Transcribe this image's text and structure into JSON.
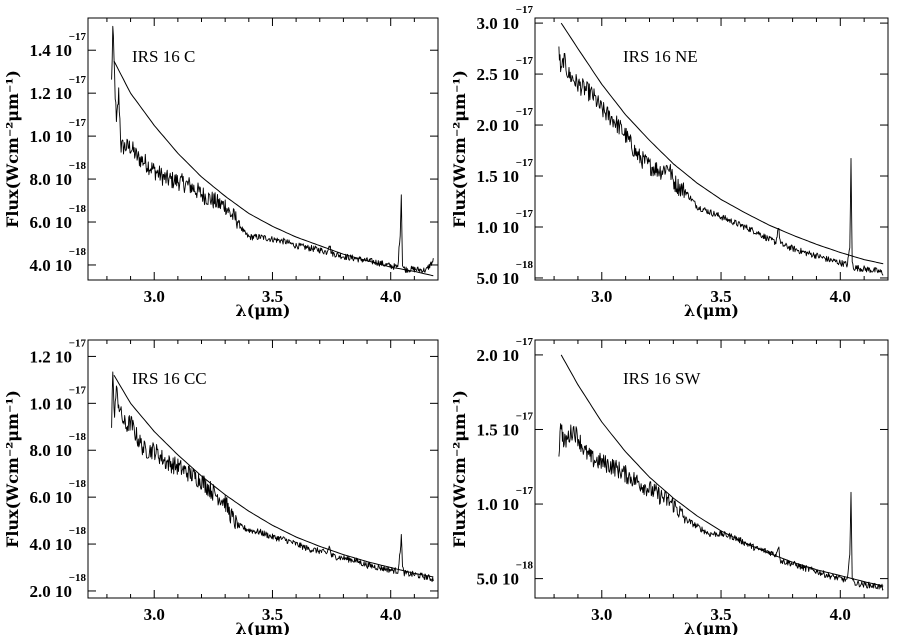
{
  "chart_data": [
    {
      "type": "line",
      "title": "IRS 16 C",
      "xlabel": "λ(μm)",
      "ylabel": "Flux(Wcm⁻²μm⁻¹)",
      "xlim": [
        2.72,
        4.2
      ],
      "ylim": [
        3.3e-18,
        1.55e-17
      ],
      "xticks": [
        {
          "v": 3.0,
          "label": "3.0"
        },
        {
          "v": 3.5,
          "label": "3.5"
        },
        {
          "v": 4.0,
          "label": "4.0"
        }
      ],
      "yticks": [
        {
          "v": 1.4e-17,
          "mant": "1.4 10",
          "exp": "−17"
        },
        {
          "v": 1.2e-17,
          "mant": "1.2 10",
          "exp": "−17"
        },
        {
          "v": 1e-17,
          "mant": "1.0 10",
          "exp": "−17"
        },
        {
          "v": 8e-18,
          "mant": "8.0 10",
          "exp": "−18"
        },
        {
          "v": 6e-18,
          "mant": "6.0 10",
          "exp": "−18"
        },
        {
          "v": 4e-18,
          "mant": "4.0 10",
          "exp": "−18"
        }
      ],
      "series": [
        {
          "kind": "spectrum",
          "x": [
            2.82,
            2.825,
            2.83,
            2.835,
            2.84,
            2.85,
            2.86,
            2.88,
            2.9,
            2.93,
            2.96,
            3.0,
            3.05,
            3.1,
            3.15,
            3.2,
            3.25,
            3.28,
            3.3,
            3.32,
            3.35,
            3.38,
            3.4,
            3.45,
            3.5,
            3.55,
            3.6,
            3.65,
            3.7,
            3.73,
            3.74,
            3.75,
            3.8,
            3.85,
            3.9,
            3.95,
            4.0,
            4.03,
            4.04,
            4.045,
            4.05,
            4.055,
            4.06,
            4.1,
            4.15,
            4.18
          ],
          "y": [
            1.25e-17,
            1.5e-17,
            1.35e-17,
            1.2e-17,
            1.05e-17,
            1.2e-17,
            9.5e-18,
            9.5e-18,
            9.5e-18,
            9e-18,
            8.8e-18,
            8.4e-18,
            8e-18,
            7.9e-18,
            7.7e-18,
            7.3e-18,
            7e-18,
            6.8e-18,
            6.8e-18,
            6.4e-18,
            6.1e-18,
            5.5e-18,
            5.3e-18,
            5.3e-18,
            5.2e-18,
            5.1e-18,
            4.9e-18,
            4.8e-18,
            4.7e-18,
            4.6e-18,
            5e-18,
            4.55e-18,
            4.4e-18,
            4.3e-18,
            4.2e-18,
            4.1e-18,
            3.95e-18,
            3.9e-18,
            5.5e-18,
            7.3e-18,
            4e-18,
            3.85e-18,
            3.8e-18,
            3.8e-18,
            3.75e-18,
            4.2e-18
          ]
        },
        {
          "kind": "model",
          "x": [
            2.83,
            2.9,
            3.0,
            3.1,
            3.2,
            3.3,
            3.4,
            3.5,
            3.6,
            3.7,
            3.8,
            3.9,
            4.0,
            4.1,
            4.18
          ],
          "y": [
            1.35e-17,
            1.2e-17,
            1.05e-17,
            9.2e-18,
            8.1e-18,
            7.2e-18,
            6.4e-18,
            5.8e-18,
            5.3e-18,
            4.9e-18,
            4.5e-18,
            4.2e-18,
            3.9e-18,
            3.7e-18,
            3.5e-18
          ]
        }
      ]
    },
    {
      "type": "line",
      "title": "IRS 16 NE",
      "xlabel": "λ(μm)",
      "ylabel": "Flux(Wcm⁻²μm⁻¹)",
      "xlim": [
        2.72,
        4.2
      ],
      "ylim": [
        4.8e-18,
        3.05e-17
      ],
      "xticks": [
        {
          "v": 3.0,
          "label": "3.0"
        },
        {
          "v": 3.5,
          "label": "3.5"
        },
        {
          "v": 4.0,
          "label": "4.0"
        }
      ],
      "yticks": [
        {
          "v": 3e-17,
          "mant": "3.0 10",
          "exp": "−17"
        },
        {
          "v": 2.5e-17,
          "mant": "2.5 10",
          "exp": "−17"
        },
        {
          "v": 2e-17,
          "mant": "2.0 10",
          "exp": "−17"
        },
        {
          "v": 1.5e-17,
          "mant": "1.5 10",
          "exp": "−17"
        },
        {
          "v": 1e-17,
          "mant": "1.0 10",
          "exp": "−17"
        },
        {
          "v": 5e-18,
          "mant": "5.0 10",
          "exp": "−18"
        }
      ],
      "series": [
        {
          "kind": "spectrum",
          "x": [
            2.82,
            2.83,
            2.84,
            2.86,
            2.88,
            2.9,
            2.93,
            2.96,
            3.0,
            3.05,
            3.1,
            3.15,
            3.2,
            3.25,
            3.28,
            3.3,
            3.32,
            3.35,
            3.4,
            3.45,
            3.5,
            3.55,
            3.6,
            3.65,
            3.7,
            3.73,
            3.74,
            3.75,
            3.8,
            3.85,
            3.9,
            3.95,
            4.0,
            4.03,
            4.04,
            4.045,
            4.05,
            4.055,
            4.06,
            4.1,
            4.15,
            4.18
          ],
          "y": [
            2.75e-17,
            2.5e-17,
            2.65e-17,
            2.5e-17,
            2.45e-17,
            2.4e-17,
            2.35e-17,
            2.3e-17,
            2.15e-17,
            2.05e-17,
            1.9e-17,
            1.7e-17,
            1.6e-17,
            1.55e-17,
            1.6e-17,
            1.45e-17,
            1.4e-17,
            1.35e-17,
            1.2e-17,
            1.15e-17,
            1.1e-17,
            1.05e-17,
            1e-17,
            9.5e-18,
            8.8e-18,
            8.5e-18,
            1e-17,
            8.3e-18,
            7.9e-18,
            7.5e-18,
            7.2e-18,
            6.8e-18,
            6.5e-18,
            6.3e-18,
            8e-18,
            1.65e-17,
            6.5e-18,
            6.1e-18,
            6e-18,
            5.9e-18,
            5.7e-18,
            5.5e-18
          ]
        },
        {
          "kind": "model",
          "x": [
            2.83,
            2.9,
            3.0,
            3.1,
            3.2,
            3.3,
            3.4,
            3.5,
            3.6,
            3.7,
            3.8,
            3.9,
            4.0,
            4.1,
            4.18
          ],
          "y": [
            3e-17,
            2.75e-17,
            2.4e-17,
            2.1e-17,
            1.85e-17,
            1.62e-17,
            1.43e-17,
            1.27e-17,
            1.14e-17,
            1.02e-17,
            9.2e-18,
            8.3e-18,
            7.5e-18,
            6.8e-18,
            6.4e-18
          ]
        }
      ]
    },
    {
      "type": "line",
      "title": "IRS 16 CC",
      "xlabel": "λ(μm)",
      "ylabel": "Flux(Wcm⁻²μm⁻¹)",
      "xlim": [
        2.72,
        4.2
      ],
      "ylim": [
        1.7e-18,
        1.27e-17
      ],
      "xticks": [
        {
          "v": 3.0,
          "label": "3.0"
        },
        {
          "v": 3.5,
          "label": "3.5"
        },
        {
          "v": 4.0,
          "label": "4.0"
        }
      ],
      "yticks": [
        {
          "v": 1.2e-17,
          "mant": "1.2 10",
          "exp": "−17"
        },
        {
          "v": 1e-17,
          "mant": "1.0 10",
          "exp": "−17"
        },
        {
          "v": 8e-18,
          "mant": "8.0 10",
          "exp": "−18"
        },
        {
          "v": 6e-18,
          "mant": "6.0 10",
          "exp": "−18"
        },
        {
          "v": 4e-18,
          "mant": "4.0 10",
          "exp": "−18"
        },
        {
          "v": 2e-18,
          "mant": "2.0 10",
          "exp": "−18"
        }
      ],
      "series": [
        {
          "kind": "spectrum",
          "x": [
            2.82,
            2.825,
            2.83,
            2.84,
            2.86,
            2.88,
            2.9,
            2.93,
            2.96,
            3.0,
            3.05,
            3.1,
            3.15,
            3.2,
            3.25,
            3.3,
            3.32,
            3.35,
            3.4,
            3.45,
            3.5,
            3.55,
            3.6,
            3.65,
            3.7,
            3.73,
            3.74,
            3.75,
            3.8,
            3.85,
            3.9,
            3.95,
            4.0,
            4.03,
            4.04,
            4.045,
            4.05,
            4.055,
            4.06,
            4.1,
            4.15,
            4.18
          ],
          "y": [
            9e-18,
            1.15e-17,
            9.5e-18,
            1.05e-17,
            9.5e-18,
            9e-18,
            9.2e-18,
            8.5e-18,
            8e-18,
            8e-18,
            7.5e-18,
            7.3e-18,
            7e-18,
            6.7e-18,
            6.2e-18,
            5.8e-18,
            5.3e-18,
            4.8e-18,
            4.6e-18,
            4.5e-18,
            4.3e-18,
            4.2e-18,
            4e-18,
            3.8e-18,
            3.7e-18,
            3.6e-18,
            3.9e-18,
            3.5e-18,
            3.4e-18,
            3.3e-18,
            3.1e-18,
            3e-18,
            2.9e-18,
            2.85e-18,
            3.6e-18,
            4.5e-18,
            3e-18,
            2.8e-18,
            2.75e-18,
            2.7e-18,
            2.6e-18,
            2.5e-18
          ]
        },
        {
          "kind": "model",
          "x": [
            2.83,
            2.9,
            3.0,
            3.1,
            3.2,
            3.3,
            3.4,
            3.5,
            3.6,
            3.7,
            3.8,
            3.9,
            4.0,
            4.1,
            4.18
          ],
          "y": [
            1.12e-17,
            1e-17,
            8.8e-18,
            7.8e-18,
            6.9e-18,
            6.1e-18,
            5.4e-18,
            4.8e-18,
            4.3e-18,
            3.9e-18,
            3.55e-18,
            3.25e-18,
            3e-18,
            2.75e-18,
            2.6e-18
          ]
        }
      ]
    },
    {
      "type": "line",
      "title": "IRS 16 SW",
      "xlabel": "λ(μm)",
      "ylabel": "Flux(Wcm⁻²μm⁻¹)",
      "xlim": [
        2.72,
        4.2
      ],
      "ylim": [
        3.7e-18,
        2.1e-17
      ],
      "xticks": [
        {
          "v": 3.0,
          "label": "3.0"
        },
        {
          "v": 3.5,
          "label": "3.5"
        },
        {
          "v": 4.0,
          "label": "4.0"
        }
      ],
      "yticks": [
        {
          "v": 2e-17,
          "mant": "2.0 10",
          "exp": "−17"
        },
        {
          "v": 1.5e-17,
          "mant": "1.5 10",
          "exp": "−17"
        },
        {
          "v": 1e-17,
          "mant": "1.0 10",
          "exp": "−17"
        },
        {
          "v": 5e-18,
          "mant": "5.0 10",
          "exp": "−18"
        }
      ],
      "series": [
        {
          "kind": "spectrum",
          "x": [
            2.82,
            2.83,
            2.84,
            2.86,
            2.88,
            2.9,
            2.93,
            2.96,
            3.0,
            3.05,
            3.1,
            3.15,
            3.2,
            3.25,
            3.3,
            3.35,
            3.4,
            3.45,
            3.5,
            3.55,
            3.6,
            3.65,
            3.7,
            3.73,
            3.74,
            3.75,
            3.8,
            3.85,
            3.9,
            3.95,
            4.0,
            4.03,
            4.04,
            4.045,
            4.05,
            4.055,
            4.06,
            4.1,
            4.15,
            4.18
          ],
          "y": [
            1.35e-17,
            1.55e-17,
            1.4e-17,
            1.45e-17,
            1.5e-17,
            1.45e-17,
            1.35e-17,
            1.3e-17,
            1.28e-17,
            1.25e-17,
            1.2e-17,
            1.15e-17,
            1.1e-17,
            1.05e-17,
            1e-17,
            9e-18,
            8.5e-18,
            8e-18,
            8e-18,
            7.8e-18,
            7.4e-18,
            7e-18,
            6.8e-18,
            6.6e-18,
            7.2e-18,
            6.2e-18,
            6e-18,
            5.7e-18,
            5.5e-18,
            5.2e-18,
            5e-18,
            4.9e-18,
            6.5e-18,
            1.1e-17,
            5e-18,
            4.8e-18,
            4.7e-18,
            4.6e-18,
            4.5e-18,
            4.4e-18
          ]
        },
        {
          "kind": "model",
          "x": [
            2.83,
            2.9,
            3.0,
            3.1,
            3.2,
            3.3,
            3.4,
            3.5,
            3.6,
            3.7,
            3.8,
            3.9,
            4.0,
            4.1,
            4.18
          ],
          "y": [
            2e-17,
            1.8e-17,
            1.55e-17,
            1.35e-17,
            1.18e-17,
            1.04e-17,
            9.2e-18,
            8.2e-18,
            7.4e-18,
            6.7e-18,
            6.1e-18,
            5.6e-18,
            5.2e-18,
            4.8e-18,
            4.5e-18
          ]
        }
      ]
    }
  ]
}
